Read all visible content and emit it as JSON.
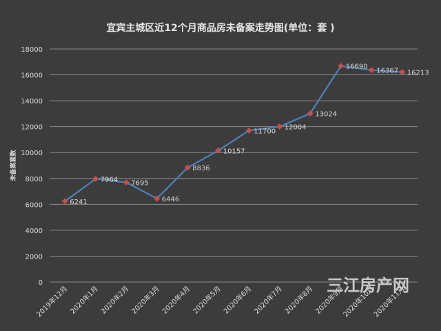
{
  "chart_data": {
    "type": "line",
    "title": "宜宾主城区近12个月商品房未备案走势图(单位：套 )",
    "ylabel": "未备案套数",
    "xlabel": "",
    "ylim": [
      0,
      18000
    ],
    "yticks": [
      0,
      2000,
      4000,
      6000,
      8000,
      10000,
      12000,
      14000,
      16000,
      18000
    ],
    "grid": true,
    "categories": [
      "2019年12月",
      "2020年1月",
      "2020年2月",
      "2020年3月",
      "2020年4月",
      "2020年5月",
      "2020年6月",
      "2020年7月",
      "2020年8月",
      "2020年9月",
      "2020年10月",
      "2020年11月"
    ],
    "series": [
      {
        "values": [
          6241,
          7964,
          7695,
          6446,
          8836,
          10157,
          11700,
          12004,
          13024,
          16690,
          16367,
          16213
        ]
      }
    ]
  },
  "watermark": "三江房产网",
  "colors": {
    "background": "#3c3c3c",
    "line": "#4f81bd",
    "marker": "#c0504d",
    "grid": "#8a8a8a",
    "text": "#d9d9d9"
  }
}
